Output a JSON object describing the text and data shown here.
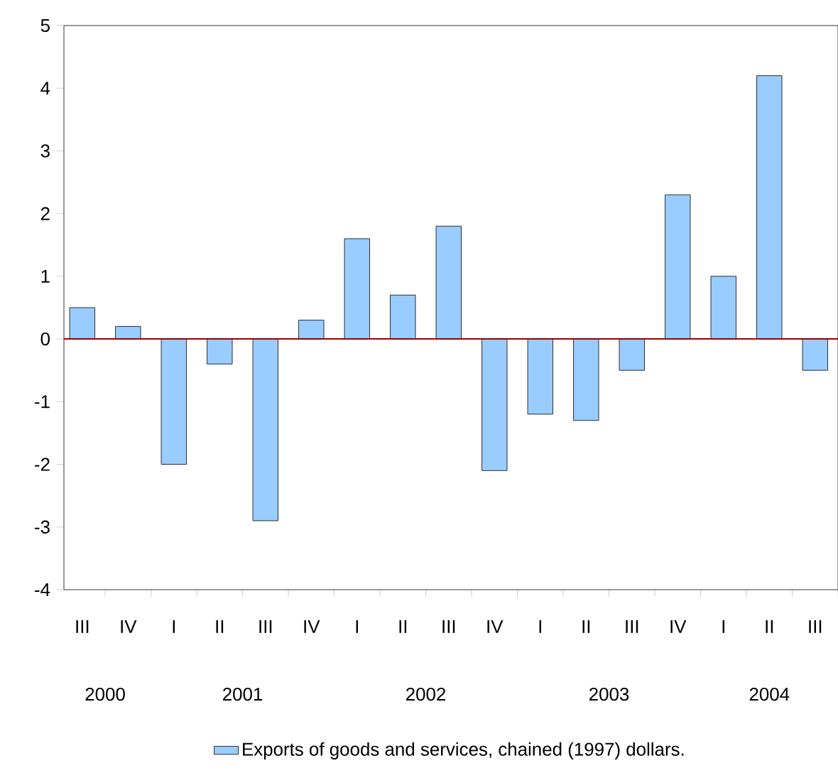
{
  "chart_data": {
    "type": "bar",
    "categories": [
      "III",
      "IV",
      "I",
      "II",
      "III",
      "IV",
      "I",
      "II",
      "III",
      "IV",
      "I",
      "II",
      "III",
      "IV",
      "I",
      "II",
      "III"
    ],
    "series": [
      {
        "name": "Exports of goods and services, chained (1997) dollars.",
        "color": "#99ccff",
        "values": [
          0.5,
          0.2,
          -2.0,
          -0.4,
          -2.9,
          0.3,
          1.6,
          0.7,
          1.8,
          -2.1,
          -1.2,
          -1.3,
          -0.5,
          2.3,
          1.0,
          4.2,
          -0.5
        ]
      }
    ],
    "ylim": [
      -4,
      5
    ],
    "yticks": [
      -4,
      -3,
      -2,
      -1,
      0,
      1,
      2,
      3,
      4,
      5
    ],
    "ref_lines": [
      {
        "axis": "y",
        "value": 0,
        "color": "#990000"
      }
    ],
    "annotations": [
      "2000",
      "2001",
      "2002",
      "2003",
      "2004"
    ],
    "legend": "bottom",
    "grid": false
  }
}
